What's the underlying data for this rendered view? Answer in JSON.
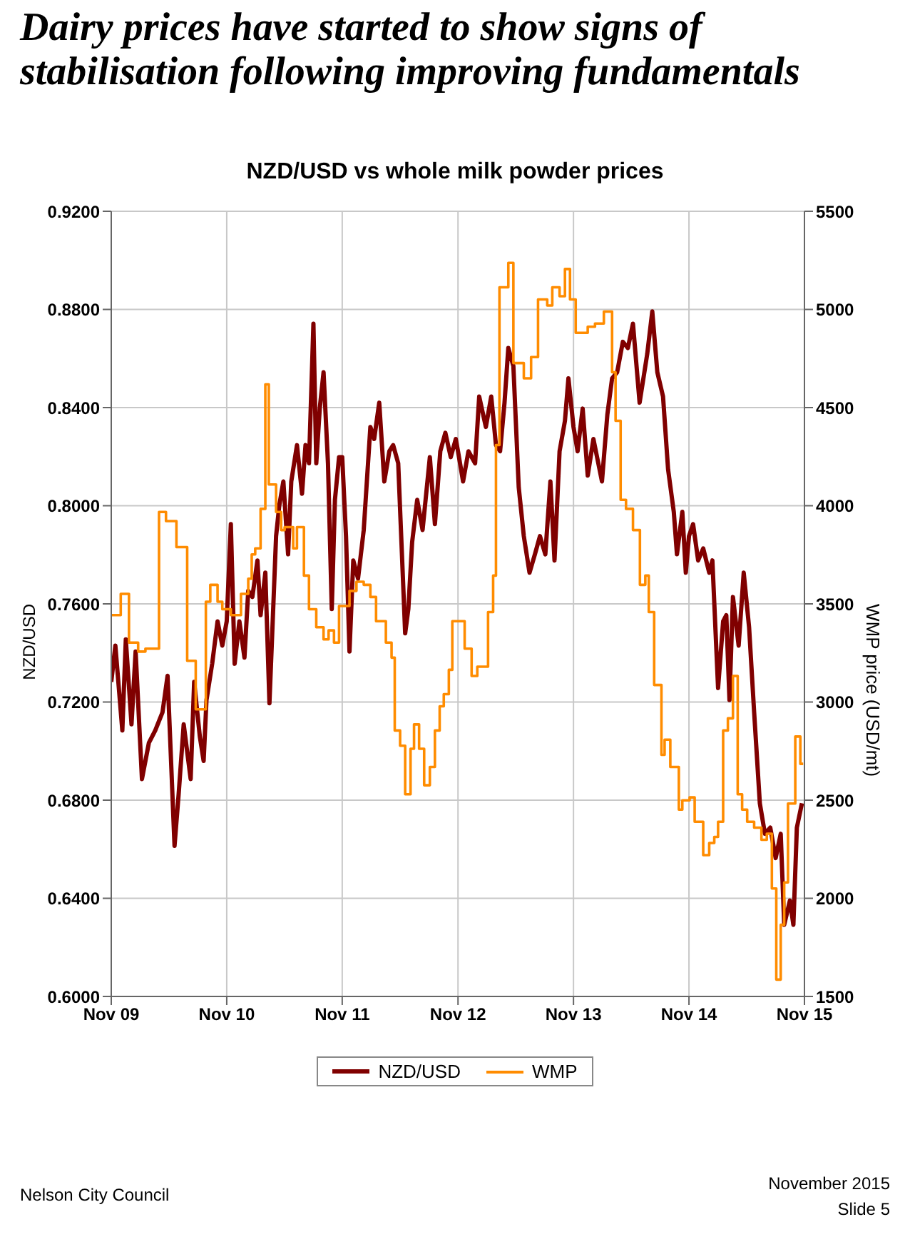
{
  "chart_data": {
    "type": "line",
    "title": "Dairy prices have started to show signs of stabilisation following improving fundamentals",
    "subtitle": "NZD/USD vs whole milk powder prices",
    "ylabel": "NZD/USD",
    "y2label": "WMP price (USD/mt)",
    "xlim": [
      "2009-11",
      "2015-11"
    ],
    "xticks": [
      {
        "value": "2009-11",
        "label": "Nov 09"
      },
      {
        "value": "2010-11",
        "label": "Nov 10"
      },
      {
        "value": "2011-11",
        "label": "Nov 11"
      },
      {
        "value": "2012-11",
        "label": "Nov 12"
      },
      {
        "value": "2013-11",
        "label": "Nov 13"
      },
      {
        "value": "2014-11",
        "label": "Nov 14"
      },
      {
        "value": "2015-11",
        "label": "Nov 15"
      }
    ],
    "ylim": [
      0.6,
      0.92
    ],
    "yticks": [
      {
        "value": 0.6,
        "label": "0.6000"
      },
      {
        "value": 0.64,
        "label": "0.6400"
      },
      {
        "value": 0.68,
        "label": "0.6800"
      },
      {
        "value": 0.72,
        "label": "0.7200"
      },
      {
        "value": 0.76,
        "label": "0.7600"
      },
      {
        "value": 0.8,
        "label": "0.8000"
      },
      {
        "value": 0.84,
        "label": "0.8400"
      },
      {
        "value": 0.88,
        "label": "0.8800"
      },
      {
        "value": 0.92,
        "label": "0.9200"
      }
    ],
    "y2lim": [
      1500,
      5500
    ],
    "y2ticks": [
      1500,
      2000,
      2500,
      3000,
      3500,
      4000,
      4500,
      5000,
      5500
    ],
    "grid": true,
    "legend": "bottom",
    "annotations": [
      "Nelson City Council",
      "November 2015",
      "Slide 5"
    ],
    "series": [
      {
        "name": "NZD/USD",
        "type": "line",
        "color": "#800000",
        "x": [
          "2009-11-01",
          "2009-11-14",
          "2009-12-06",
          "2009-12-17",
          "2010-01-04",
          "2010-01-17",
          "2010-02-06",
          "2010-02-28",
          "2010-03-20",
          "2010-04-12",
          "2010-04-28",
          "2010-05-20",
          "2010-06-02",
          "2010-06-18",
          "2010-07-10",
          "2010-07-21",
          "2010-08-08",
          "2010-08-20",
          "2010-08-29",
          "2010-09-16",
          "2010-10-03",
          "2010-10-18",
          "2010-11-01",
          "2010-11-14",
          "2010-11-26",
          "2010-12-11",
          "2010-12-27",
          "2011-01-08",
          "2011-01-21",
          "2011-02-06",
          "2011-02-16",
          "2011-03-03",
          "2011-03-16",
          "2011-04-06",
          "2011-04-16",
          "2011-04-29",
          "2011-05-14",
          "2011-05-24",
          "2011-06-11",
          "2011-06-27",
          "2011-07-08",
          "2011-07-19",
          "2011-08-02",
          "2011-08-11",
          "2011-08-22",
          "2011-09-03",
          "2011-09-17",
          "2011-09-29",
          "2011-10-09",
          "2011-10-22",
          "2011-11-01",
          "2011-11-13",
          "2011-11-24",
          "2011-12-06",
          "2011-12-21",
          "2012-01-08",
          "2012-01-29",
          "2012-02-10",
          "2012-02-26",
          "2012-03-13",
          "2012-03-29",
          "2012-04-10",
          "2012-04-26",
          "2012-05-18",
          "2012-05-28",
          "2012-06-09",
          "2012-06-25",
          "2012-07-12",
          "2012-08-04",
          "2012-08-20",
          "2012-09-06",
          "2012-09-22",
          "2012-10-09",
          "2012-10-25",
          "2012-11-01",
          "2012-11-17",
          "2012-12-04",
          "2012-12-25",
          "2013-01-07",
          "2013-01-28",
          "2013-02-14",
          "2013-03-01",
          "2013-03-14",
          "2013-03-28",
          "2013-04-09",
          "2013-04-25",
          "2013-05-12",
          "2013-05-28",
          "2013-06-15",
          "2013-07-02",
          "2013-07-18",
          "2013-08-04",
          "2013-08-20",
          "2013-09-02",
          "2013-09-18",
          "2013-10-05",
          "2013-10-16",
          "2013-11-01",
          "2013-11-14",
          "2013-11-30",
          "2013-12-16",
          "2014-01-03",
          "2014-01-30",
          "2014-02-16",
          "2014-03-03",
          "2014-03-19",
          "2014-04-06",
          "2014-04-22",
          "2014-05-08",
          "2014-05-29",
          "2014-06-22",
          "2014-07-08",
          "2014-07-24",
          "2014-08-11",
          "2014-08-27",
          "2014-09-14",
          "2014-09-24",
          "2014-10-11",
          "2014-10-22",
          "2014-11-01",
          "2014-11-14",
          "2014-11-30",
          "2014-12-16",
          "2015-01-04",
          "2015-01-14",
          "2015-02-01",
          "2015-02-17",
          "2015-02-27",
          "2015-03-09",
          "2015-03-20",
          "2015-04-07",
          "2015-04-23",
          "2015-05-10",
          "2015-05-26",
          "2015-06-13",
          "2015-06-29",
          "2015-07-16",
          "2015-08-02",
          "2015-08-18",
          "2015-08-29",
          "2015-09-16",
          "2015-09-27",
          "2015-10-08",
          "2015-10-24"
        ],
        "values": [
          0.7282,
          0.743,
          0.7084,
          0.7455,
          0.7109,
          0.7406,
          0.6886,
          0.7034,
          0.7084,
          0.7158,
          0.7307,
          0.6614,
          0.6824,
          0.7109,
          0.6886,
          0.7282,
          0.7059,
          0.696,
          0.7208,
          0.7356,
          0.7529,
          0.743,
          0.7529,
          0.7925,
          0.7356,
          0.7529,
          0.7381,
          0.7653,
          0.7628,
          0.7777,
          0.7554,
          0.7727,
          0.7195,
          0.7876,
          0.8,
          0.8099,
          0.7802,
          0.8099,
          0.8247,
          0.8049,
          0.8247,
          0.8173,
          0.8742,
          0.8173,
          0.8396,
          0.8544,
          0.8173,
          0.7579,
          0.8024,
          0.8198,
          0.8198,
          0.7876,
          0.7406,
          0.7777,
          0.7703,
          0.7901,
          0.8321,
          0.8272,
          0.842,
          0.8099,
          0.8222,
          0.8247,
          0.8173,
          0.748,
          0.7579,
          0.7851,
          0.8024,
          0.7901,
          0.8198,
          0.7925,
          0.8222,
          0.8297,
          0.8198,
          0.8272,
          0.8222,
          0.8099,
          0.8222,
          0.8173,
          0.8445,
          0.8321,
          0.8445,
          0.8247,
          0.8222,
          0.842,
          0.8643,
          0.8569,
          0.8074,
          0.7876,
          0.7727,
          0.7802,
          0.7876,
          0.7802,
          0.8099,
          0.7777,
          0.8222,
          0.8346,
          0.8519,
          0.8321,
          0.8222,
          0.8396,
          0.8123,
          0.8272,
          0.8099,
          0.8371,
          0.8519,
          0.8544,
          0.8668,
          0.8643,
          0.8742,
          0.842,
          0.8618,
          0.8792,
          0.8544,
          0.8445,
          0.8148,
          0.7975,
          0.7802,
          0.7975,
          0.7727,
          0.7876,
          0.7925,
          0.7777,
          0.7826,
          0.7727,
          0.7777,
          0.7257,
          0.7529,
          0.7554,
          0.7208,
          0.7628,
          0.743,
          0.7727,
          0.7505,
          0.7158,
          0.6787,
          0.6663,
          0.6688,
          0.6564,
          0.6663,
          0.6292,
          0.6391,
          0.6292,
          0.6688,
          0.6787
        ]
      },
      {
        "name": "WMP",
        "type": "step",
        "axis": "y2",
        "color": "#ff8c00",
        "x": [
          "2009-11-01",
          "2009-12-01",
          "2009-12-27",
          "2010-01-25",
          "2010-02-17",
          "2010-04-01",
          "2010-04-23",
          "2010-05-26",
          "2010-06-29",
          "2010-07-26",
          "2010-08-27",
          "2010-09-10",
          "2010-10-03",
          "2010-10-18",
          "2010-11-14",
          "2010-12-16",
          "2011-01-08",
          "2011-01-19",
          "2011-01-30",
          "2011-02-16",
          "2011-03-03",
          "2011-03-14",
          "2011-04-06",
          "2011-04-22",
          "2011-05-03",
          "2011-05-30",
          "2011-06-11",
          "2011-07-03",
          "2011-07-19",
          "2011-08-11",
          "2011-09-03",
          "2011-09-19",
          "2011-10-06",
          "2011-10-22",
          "2011-11-24",
          "2011-12-16",
          "2012-01-08",
          "2012-01-29",
          "2012-02-16",
          "2012-03-18",
          "2012-04-05",
          "2012-04-15",
          "2012-05-02",
          "2012-05-18",
          "2012-06-04",
          "2012-06-15",
          "2012-07-01",
          "2012-07-17",
          "2012-08-04",
          "2012-08-20",
          "2012-09-04",
          "2012-09-17",
          "2012-10-03",
          "2012-10-14",
          "2012-11-22",
          "2012-12-14",
          "2013-01-01",
          "2013-02-04",
          "2013-02-20",
          "2013-03-01",
          "2013-03-12",
          "2013-04-09",
          "2013-04-25",
          "2013-05-28",
          "2013-06-20",
          "2013-07-12",
          "2013-08-10",
          "2013-08-26",
          "2013-09-18",
          "2013-10-05",
          "2013-10-21",
          "2013-11-08",
          "2013-12-16",
          "2014-01-08",
          "2014-02-05",
          "2014-03-03",
          "2014-03-14",
          "2014-03-30",
          "2014-04-16",
          "2014-05-08",
          "2014-05-30",
          "2014-06-16",
          "2014-06-27",
          "2014-07-14",
          "2014-08-06",
          "2014-08-16",
          "2014-09-03",
          "2014-09-30",
          "2014-10-11",
          "2014-11-03",
          "2014-11-19",
          "2014-12-16",
          "2015-01-04",
          "2015-01-20",
          "2015-02-01",
          "2015-02-17",
          "2015-03-04",
          "2015-03-20",
          "2015-04-04",
          "2015-04-18",
          "2015-05-04",
          "2015-05-26",
          "2015-06-18",
          "2015-07-05",
          "2015-07-21",
          "2015-08-04",
          "2015-08-18",
          "2015-08-29",
          "2015-09-10",
          "2015-10-03",
          "2015-10-19",
          "2015-10-28"
        ],
        "values": [
          3443,
          3551,
          3303,
          3257,
          3272,
          3968,
          3922,
          3789,
          3210,
          2963,
          3511,
          3597,
          3511,
          3473,
          3443,
          3551,
          3628,
          3752,
          3783,
          3984,
          4618,
          4108,
          3968,
          3876,
          3891,
          3783,
          3891,
          3644,
          3473,
          3381,
          3319,
          3365,
          3303,
          3489,
          3566,
          3613,
          3597,
          3535,
          3412,
          3303,
          3226,
          2855,
          2777,
          2530,
          2762,
          2886,
          2762,
          2576,
          2669,
          2855,
          2978,
          3040,
          3164,
          3412,
          3272,
          3133,
          3180,
          3458,
          3644,
          4309,
          5113,
          5237,
          4727,
          4649,
          4757,
          5051,
          5020,
          5113,
          5067,
          5206,
          5051,
          4881,
          4912,
          4928,
          4989,
          4680,
          4433,
          4030,
          3984,
          3876,
          3597,
          3644,
          3458,
          3087,
          2731,
          2808,
          2669,
          2452,
          2499,
          2514,
          2390,
          2220,
          2282,
          2313,
          2390,
          2855,
          2917,
          3133,
          2530,
          2452,
          2390,
          2360,
          2298,
          2329,
          2050,
          1586,
          1865,
          2081,
          2483,
          2824,
          2685,
          2685
        ]
      }
    ]
  }
}
